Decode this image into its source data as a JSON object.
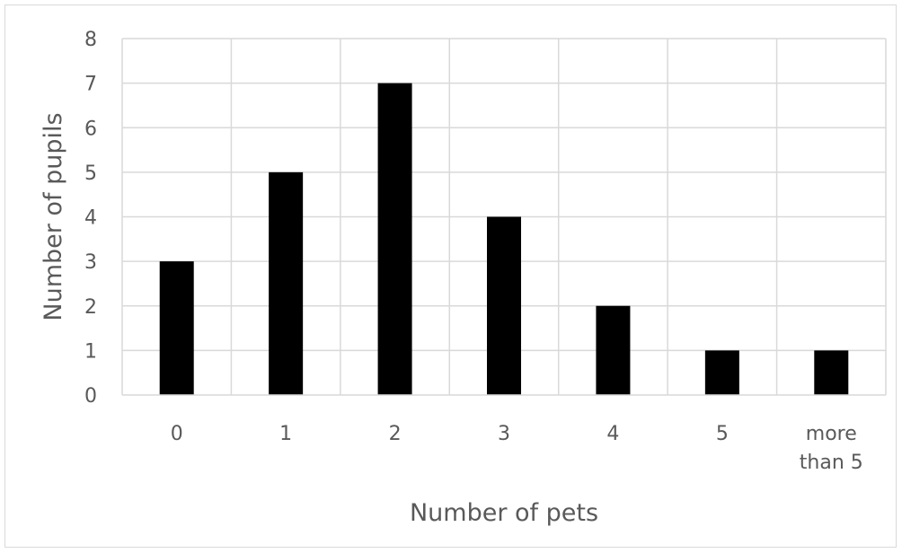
{
  "chart_data": {
    "type": "bar",
    "title": "",
    "xlabel": "Number of pets",
    "ylabel": "Number of pupils",
    "categories": [
      "0",
      "1",
      "2",
      "3",
      "4",
      "5",
      "more than 5"
    ],
    "values": [
      3,
      5,
      7,
      4,
      2,
      1,
      1
    ],
    "ylim": [
      0,
      8
    ],
    "yticks": [
      0,
      1,
      2,
      3,
      4,
      5,
      6,
      7,
      8
    ],
    "grid": true,
    "bar_color": "#000000",
    "grid_color": "#d9d9d9",
    "axis_color": "#d9d9d9",
    "text_color": "#595959",
    "legend": "none"
  }
}
